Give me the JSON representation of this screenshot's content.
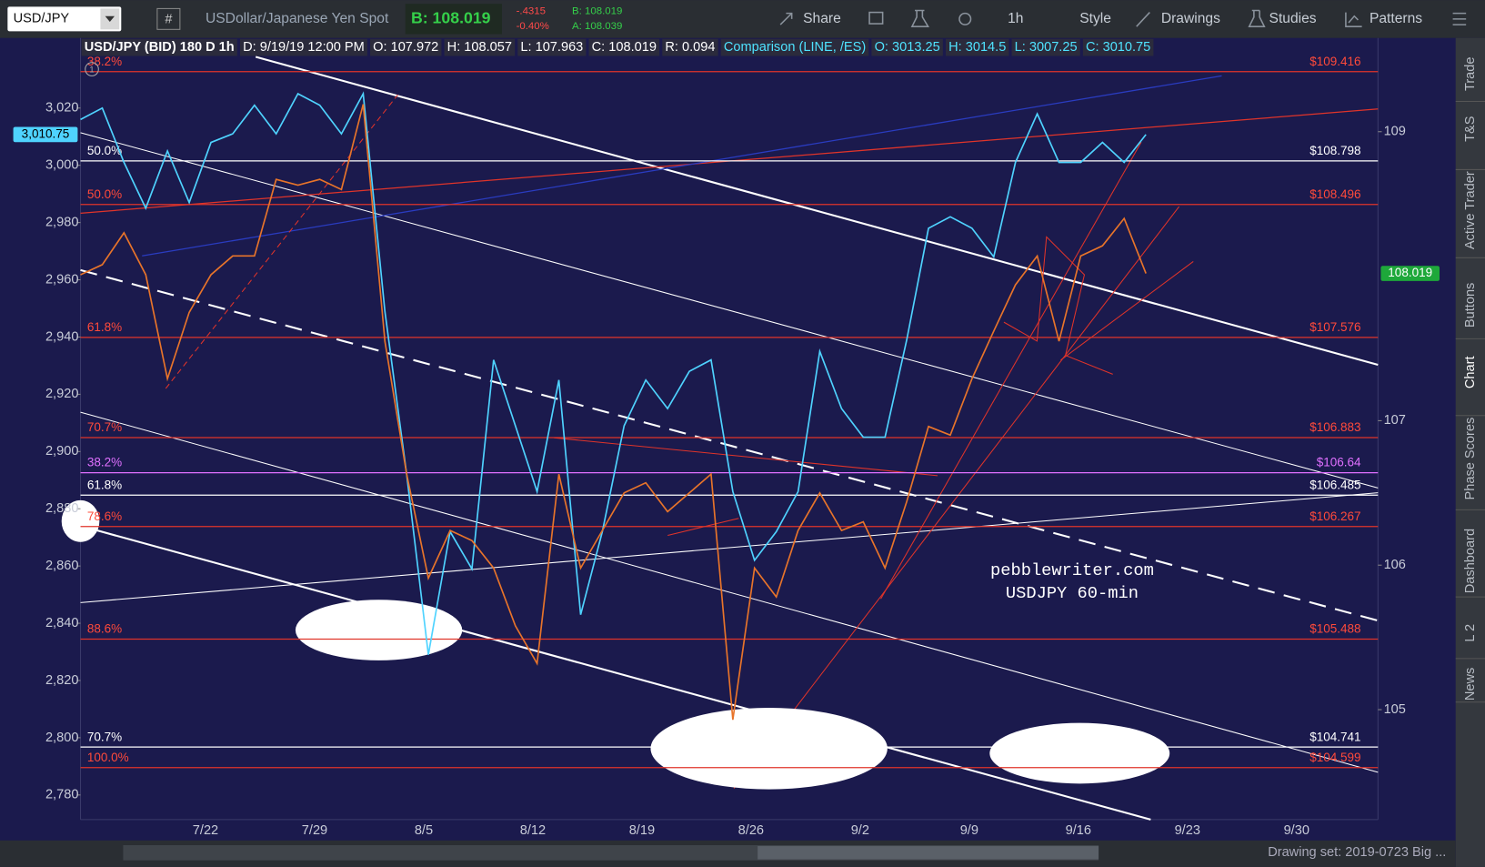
{
  "toolbar": {
    "symbol": "USD/JPY",
    "description": "USDollar/Japanese Yen Spot",
    "bid": "B: 108.019",
    "change": "-.4315",
    "change_pct": "-0.40%",
    "bid_small": "B: 108.019",
    "ask_small": "A: 108.039",
    "buttons": [
      "Share",
      "1h",
      "Style",
      "Drawings",
      "Studies",
      "Patterns"
    ]
  },
  "chart_data": {
    "type": "line",
    "header": [
      "USD/JPY (BID) 180 D 1h",
      "D: 9/19/19 12:00 PM",
      "O: 107.972",
      "H: 108.057",
      "L: 107.963",
      "C: 108.019",
      "R: 0.094"
    ],
    "comparison": [
      "Comparison (LINE, /ES)",
      "O: 3013.25",
      "H: 3014.5",
      "L: 3007.25",
      "C: 3010.75"
    ],
    "x_labels": [
      "7/22",
      "7/29",
      "8/5",
      "8/12",
      "8/19",
      "8/26",
      "9/2",
      "9/9",
      "9/16",
      "9/23",
      "9/30"
    ],
    "ylim": [
      2771.4,
      3044.5
    ],
    "yticks": [
      {
        "value": 3020,
        "label": "3,020"
      },
      {
        "value": 3000,
        "label": "3,000"
      },
      {
        "value": 2980,
        "label": "2,980"
      },
      {
        "value": 2960,
        "label": "2,960"
      },
      {
        "value": 2940,
        "label": "2,940"
      },
      {
        "value": 2920,
        "label": "2,920"
      },
      {
        "value": 2900,
        "label": "2,900"
      },
      {
        "value": 2880,
        "label": "2,880"
      },
      {
        "value": 2860,
        "label": "2,860"
      },
      {
        "value": 2840,
        "label": "2,840"
      },
      {
        "value": 2820,
        "label": "2,820"
      },
      {
        "value": 2800,
        "label": "2,800"
      },
      {
        "value": 2780,
        "label": "2,780"
      }
    ],
    "y2lim": [
      104.239,
      109.649
    ],
    "y2ticks": [
      109,
      107,
      106,
      105
    ],
    "series": [
      {
        "color": "#4fd3ff",
        "values": [
          3016,
          3020,
          3001,
          2985,
          3005,
          2987,
          3008,
          3011,
          3021,
          3011,
          3025,
          3021,
          3011,
          3025,
          2949,
          2892,
          2829,
          2872,
          2859,
          2932,
          2909,
          2886,
          2925,
          2843,
          2872,
          2909,
          2925,
          2915,
          2928,
          2932,
          2886,
          2862,
          2872,
          2886,
          2935,
          2915,
          2905,
          2905,
          2939,
          2978,
          2982,
          2978,
          2968,
          3001,
          3018,
          3001,
          3001,
          3008,
          3001,
          3010.75
        ]
      },
      {
        "color": "#e8742a",
        "axis": "y2",
        "values": [
          108.01,
          108.08,
          108.3,
          108.01,
          107.29,
          107.75,
          108.01,
          108.14,
          108.14,
          108.67,
          108.63,
          108.67,
          108.6,
          109.19,
          107.55,
          106.63,
          105.91,
          106.24,
          106.17,
          105.98,
          105.58,
          105.32,
          106.63,
          105.98,
          106.24,
          106.5,
          106.57,
          106.37,
          106.5,
          106.63,
          104.93,
          105.98,
          105.78,
          106.24,
          106.5,
          106.24,
          106.3,
          105.98,
          106.44,
          106.96,
          106.9,
          107.29,
          107.62,
          107.94,
          108.14,
          107.55,
          108.14,
          108.21,
          108.4,
          108.019
        ]
      }
    ],
    "last_tag": {
      "value": 3010.75,
      "label": "3,010.75"
    },
    "y2_last_tag": 108.019,
    "levels": [
      {
        "label": "38.2%",
        "price_label": "$109.416",
        "value": 109.416,
        "color": "#e0342a"
      },
      {
        "label": "50.0%",
        "price_label": "$108.798",
        "value": 108.798,
        "color": "#ffffff"
      },
      {
        "label": "50.0%",
        "price_label": "$108.496",
        "value": 108.496,
        "color": "#e0342a"
      },
      {
        "label": "61.8%",
        "price_label": "$107.576",
        "value": 107.576,
        "color": "#e0342a"
      },
      {
        "label": "70.7%",
        "price_label": "$106.883",
        "value": 106.883,
        "color": "#e0342a"
      },
      {
        "label": "38.2%",
        "price_label": "$106.64",
        "value": 106.64,
        "color": "#e070ff"
      },
      {
        "label": "61.8%",
        "price_label": "$106.485",
        "value": 106.485,
        "color": "#ffffff"
      },
      {
        "label": "78.6%",
        "price_label": "$106.267",
        "value": 106.267,
        "color": "#e0342a"
      },
      {
        "label": "88.6%",
        "price_label": "$105.488",
        "value": 105.488,
        "color": "#e0342a"
      },
      {
        "label": "70.7%",
        "price_label": "$104.741",
        "value": 104.741,
        "color": "#ffffff"
      },
      {
        "label": "100.0%",
        "price_label": "$104.599",
        "value": 104.599,
        "color": "#e0342a"
      }
    ],
    "annotations": [
      "pebblewriter.com",
      "USDJPY 60-min"
    ]
  },
  "sidebar": [
    "Trade",
    "T&S",
    "Active Trader",
    "Buttons",
    "Chart",
    "Phase Scores",
    "Dashboard",
    "L 2",
    "News"
  ],
  "footer": "Drawing set: 2019-0723 Big ..."
}
